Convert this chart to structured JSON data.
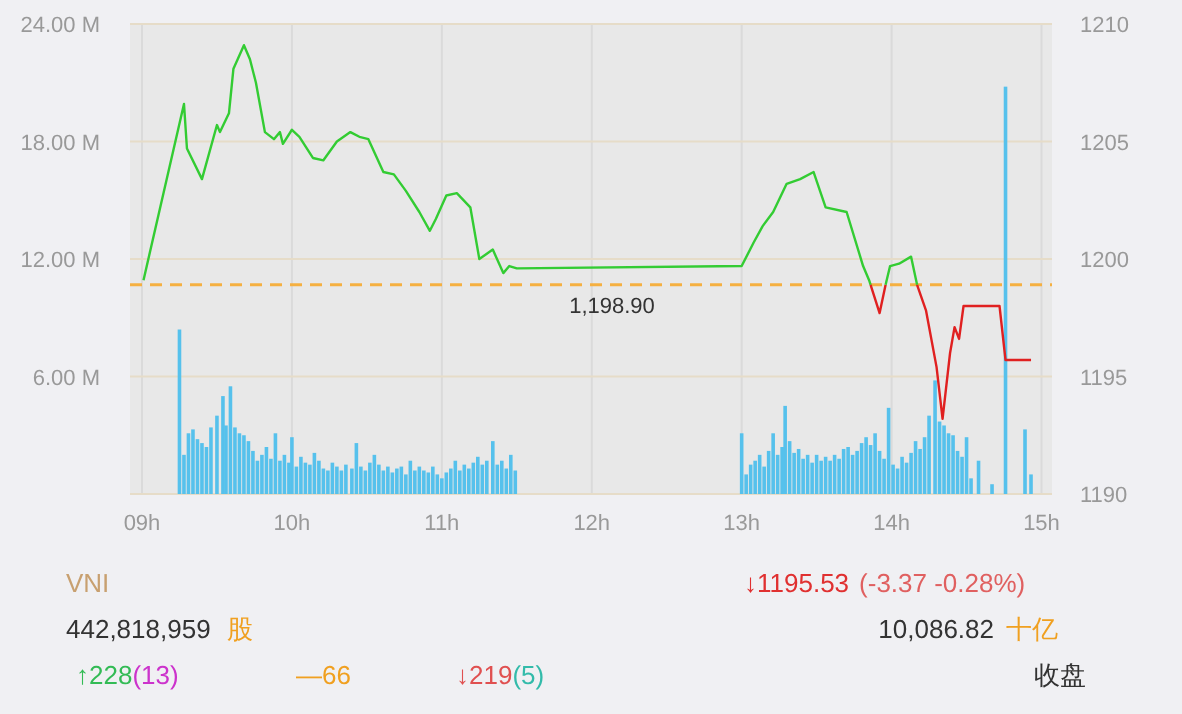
{
  "chart_data": {
    "type": "line",
    "xlim": [
      8.92,
      15.07
    ],
    "xticks": [
      {
        "value": 9,
        "label": "09h"
      },
      {
        "value": 10,
        "label": "10h"
      },
      {
        "value": 11,
        "label": "11h"
      },
      {
        "value": 12,
        "label": "12h"
      },
      {
        "value": 13,
        "label": "13h"
      },
      {
        "value": 14,
        "label": "14h"
      },
      {
        "value": 15,
        "label": "15h"
      }
    ],
    "ylim": [
      0,
      24
    ],
    "yticks": [
      {
        "value": 6,
        "label": "6.00 M"
      },
      {
        "value": 12,
        "label": "12.00 M"
      },
      {
        "value": 18,
        "label": "18.00 M"
      },
      {
        "value": 24,
        "label": "24.00 M"
      }
    ],
    "y2lim": [
      1190,
      1210
    ],
    "y2ticks": [
      1190,
      1195,
      1200,
      1205,
      1210
    ],
    "grid": true,
    "series": [
      {
        "type": "bar",
        "color": "#56c1ec",
        "x": [
          9.25,
          9.28,
          9.31,
          9.34,
          9.37,
          9.4,
          9.43,
          9.46,
          9.5,
          9.54,
          9.56,
          9.59,
          9.62,
          9.65,
          9.68,
          9.71,
          9.74,
          9.77,
          9.8,
          9.83,
          9.86,
          9.89,
          9.92,
          9.95,
          9.98,
          10.0,
          10.03,
          10.06,
          10.09,
          10.12,
          10.15,
          10.18,
          10.21,
          10.24,
          10.27,
          10.3,
          10.33,
          10.36,
          10.4,
          10.43,
          10.46,
          10.49,
          10.52,
          10.55,
          10.58,
          10.61,
          10.64,
          10.67,
          10.7,
          10.73,
          10.76,
          10.79,
          10.82,
          10.85,
          10.88,
          10.91,
          10.94,
          10.97,
          11.0,
          11.03,
          11.06,
          11.09,
          11.12,
          11.15,
          11.18,
          11.21,
          11.24,
          11.27,
          11.3,
          11.34,
          11.37,
          11.4,
          11.43,
          11.46,
          11.49,
          13.0,
          13.03,
          13.06,
          13.09,
          13.12,
          13.15,
          13.18,
          13.21,
          13.24,
          13.27,
          13.29,
          13.32,
          13.35,
          13.38,
          13.41,
          13.44,
          13.47,
          13.5,
          13.53,
          13.56,
          13.59,
          13.62,
          13.65,
          13.68,
          13.71,
          13.74,
          13.77,
          13.8,
          13.83,
          13.86,
          13.89,
          13.92,
          13.95,
          13.98,
          14.01,
          14.04,
          14.07,
          14.1,
          14.13,
          14.16,
          14.19,
          14.22,
          14.25,
          14.29,
          14.32,
          14.35,
          14.38,
          14.41,
          14.44,
          14.47,
          14.5,
          14.53,
          14.58,
          14.67,
          14.76,
          14.89,
          14.93
        ],
        "values": [
          8.4,
          2.0,
          3.1,
          3.3,
          2.8,
          2.6,
          2.4,
          3.4,
          4.0,
          5.0,
          3.5,
          5.5,
          3.4,
          3.1,
          3.0,
          2.7,
          2.2,
          1.7,
          2.0,
          2.4,
          1.8,
          3.1,
          1.7,
          2.0,
          1.6,
          2.9,
          1.4,
          1.9,
          1.6,
          1.5,
          2.1,
          1.7,
          1.3,
          1.2,
          1.6,
          1.4,
          1.2,
          1.5,
          1.3,
          2.6,
          1.4,
          1.2,
          1.6,
          2.0,
          1.5,
          1.2,
          1.4,
          1.1,
          1.3,
          1.4,
          1.0,
          1.7,
          1.2,
          1.4,
          1.2,
          1.1,
          1.4,
          1.0,
          0.8,
          1.1,
          1.3,
          1.7,
          1.2,
          1.5,
          1.3,
          1.6,
          1.9,
          1.5,
          1.7,
          2.7,
          1.5,
          1.7,
          1.3,
          2.0,
          1.2,
          3.1,
          1.0,
          1.5,
          1.7,
          2.0,
          1.4,
          2.2,
          3.1,
          2.0,
          2.4,
          4.5,
          2.7,
          2.1,
          2.3,
          1.8,
          2.0,
          1.6,
          2.0,
          1.7,
          1.9,
          1.7,
          2.0,
          1.8,
          2.3,
          2.4,
          2.0,
          2.2,
          2.6,
          2.9,
          2.5,
          3.1,
          2.2,
          1.8,
          4.4,
          1.5,
          1.3,
          1.9,
          1.6,
          2.1,
          2.7,
          2.3,
          2.9,
          4.0,
          5.8,
          3.7,
          3.5,
          3.1,
          3.0,
          2.2,
          1.9,
          2.9,
          0.8,
          1.7,
          0.5,
          20.8,
          3.3,
          1.0
        ]
      },
      {
        "type": "line",
        "axis": "y2",
        "color": "#33cc33",
        "x": [
          9.01,
          9.28,
          9.3,
          9.4,
          9.5,
          9.52,
          9.58,
          9.61,
          9.68,
          9.72,
          9.76,
          9.82,
          9.88,
          9.92,
          9.94,
          10.0,
          10.05,
          10.14,
          10.21,
          10.3,
          10.39,
          10.45,
          10.51,
          10.61,
          10.68,
          10.76,
          10.85,
          10.92,
          10.96,
          11.03,
          11.1,
          11.19,
          11.25,
          11.34,
          11.41,
          11.45,
          11.5,
          13.0,
          13.08,
          13.14,
          13.21,
          13.3,
          13.39,
          13.48,
          13.56,
          13.7,
          13.81,
          13.85,
          13.86
        ],
        "values": [
          1199.1,
          1206.6,
          1204.7,
          1203.4,
          1205.7,
          1205.4,
          1206.2,
          1208.1,
          1209.1,
          1208.5,
          1207.5,
          1205.4,
          1205.1,
          1205.4,
          1204.9,
          1205.5,
          1205.2,
          1204.3,
          1204.2,
          1205.0,
          1205.4,
          1205.2,
          1205.1,
          1203.7,
          1203.6,
          1202.9,
          1202.0,
          1201.2,
          1201.7,
          1202.7,
          1202.8,
          1202.2,
          1200.0,
          1200.4,
          1199.4,
          1199.7,
          1199.6,
          1199.7,
          1200.7,
          1201.4,
          1202.0,
          1203.2,
          1203.4,
          1203.7,
          1202.2,
          1202.0,
          1199.7,
          1199.1,
          1198.9
        ]
      },
      {
        "type": "line",
        "axis": "y2",
        "color": "#e02020",
        "x": [
          13.86,
          13.92,
          13.96
        ],
        "values": [
          1198.9,
          1197.7,
          1198.9
        ]
      },
      {
        "type": "line",
        "axis": "y2",
        "color": "#33cc33",
        "x": [
          13.96,
          13.99,
          14.05,
          14.13,
          14.17
        ],
        "values": [
          1198.9,
          1199.7,
          1199.8,
          1200.1,
          1198.9
        ]
      },
      {
        "type": "line",
        "axis": "y2",
        "color": "#e02020",
        "x": [
          14.17,
          14.23,
          14.3,
          14.34,
          14.39,
          14.42,
          14.45,
          14.48,
          14.72,
          14.76,
          14.93
        ],
        "values": [
          1198.9,
          1197.8,
          1195.4,
          1193.2,
          1196.0,
          1197.1,
          1196.6,
          1198.0,
          1198.0,
          1195.7,
          1195.7
        ]
      }
    ],
    "ref_lines": [
      {
        "axis": "y2",
        "value": 1198.9,
        "label": "1,198.90",
        "color": "#f5b041",
        "line_style": "dashed"
      }
    ],
    "annotations": [
      "VNI",
      "↓1195.53",
      "(-3.37  -0.28%)",
      "442,818,959",
      "股",
      "10,086.82",
      "十亿",
      "↑228",
      "(13)",
      "—66",
      "↓219",
      "(5)",
      "收盘"
    ]
  }
}
